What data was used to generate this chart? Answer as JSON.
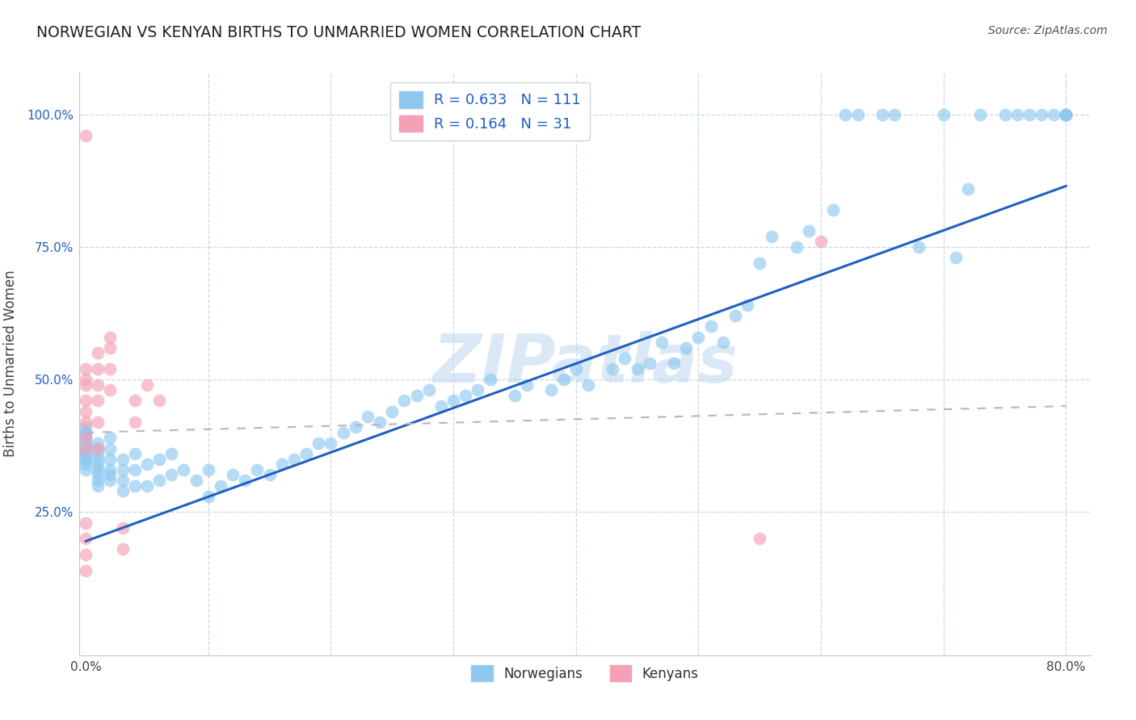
{
  "title": "NORWEGIAN VS KENYAN BIRTHS TO UNMARRIED WOMEN CORRELATION CHART",
  "source": "Source: ZipAtlas.com",
  "ylabel": "Births to Unmarried Women",
  "watermark": "ZIPatlas",
  "xlim": [
    -0.005,
    0.82
  ],
  "ylim": [
    -0.02,
    1.08
  ],
  "xtick_positions": [
    0.0,
    0.1,
    0.2,
    0.3,
    0.4,
    0.5,
    0.6,
    0.7,
    0.8
  ],
  "xtick_labels": [
    "0.0%",
    "",
    "",
    "",
    "",
    "",
    "",
    "",
    "80.0%"
  ],
  "ytick_positions": [
    0.0,
    0.25,
    0.5,
    0.75,
    1.0
  ],
  "ytick_labels": [
    "",
    "25.0%",
    "50.0%",
    "75.0%",
    "100.0%"
  ],
  "norwegian_R": 0.633,
  "norwegian_N": 111,
  "kenyan_R": 0.164,
  "kenyan_N": 31,
  "nor_color": "#8EC8F0",
  "ken_color": "#F5A0B5",
  "nor_line_color": "#2060C0",
  "ken_line_color": "#C0B0C0",
  "background_color": "#FFFFFF",
  "grid_color": "#C8D8E8",
  "title_color": "#202020",
  "legend_text_color": "#2060C0",
  "nor_scatter_x": [
    0.0,
    0.0,
    0.0,
    0.0,
    0.0,
    0.0,
    0.0,
    0.0,
    0.0,
    0.0,
    0.0,
    0.0,
    0.0,
    0.0,
    0.0,
    0.01,
    0.01,
    0.01,
    0.01,
    0.01,
    0.01,
    0.01,
    0.01,
    0.01,
    0.02,
    0.02,
    0.02,
    0.02,
    0.02,
    0.02,
    0.03,
    0.03,
    0.03,
    0.03,
    0.04,
    0.04,
    0.04,
    0.05,
    0.05,
    0.06,
    0.06,
    0.07,
    0.07,
    0.08,
    0.09,
    0.1,
    0.1,
    0.11,
    0.12,
    0.13,
    0.14,
    0.15,
    0.16,
    0.17,
    0.18,
    0.19,
    0.2,
    0.21,
    0.22,
    0.23,
    0.24,
    0.25,
    0.26,
    0.27,
    0.28,
    0.29,
    0.3,
    0.31,
    0.32,
    0.33,
    0.35,
    0.36,
    0.38,
    0.39,
    0.4,
    0.41,
    0.43,
    0.44,
    0.45,
    0.46,
    0.47,
    0.48,
    0.49,
    0.5,
    0.51,
    0.52,
    0.53,
    0.54,
    0.55,
    0.56,
    0.58,
    0.59,
    0.61,
    0.62,
    0.63,
    0.65,
    0.66,
    0.68,
    0.7,
    0.71,
    0.72,
    0.73,
    0.75,
    0.76,
    0.77,
    0.78,
    0.79,
    0.8,
    0.8,
    0.8,
    0.8
  ],
  "nor_scatter_y": [
    0.33,
    0.34,
    0.35,
    0.35,
    0.36,
    0.36,
    0.37,
    0.37,
    0.38,
    0.38,
    0.39,
    0.39,
    0.4,
    0.4,
    0.41,
    0.3,
    0.31,
    0.32,
    0.33,
    0.34,
    0.35,
    0.36,
    0.37,
    0.38,
    0.31,
    0.32,
    0.33,
    0.35,
    0.37,
    0.39,
    0.29,
    0.31,
    0.33,
    0.35,
    0.3,
    0.33,
    0.36,
    0.3,
    0.34,
    0.31,
    0.35,
    0.32,
    0.36,
    0.33,
    0.31,
    0.28,
    0.33,
    0.3,
    0.32,
    0.31,
    0.33,
    0.32,
    0.34,
    0.35,
    0.36,
    0.38,
    0.38,
    0.4,
    0.41,
    0.43,
    0.42,
    0.44,
    0.46,
    0.47,
    0.48,
    0.45,
    0.46,
    0.47,
    0.48,
    0.5,
    0.47,
    0.49,
    0.48,
    0.5,
    0.52,
    0.49,
    0.52,
    0.54,
    0.52,
    0.53,
    0.57,
    0.53,
    0.56,
    0.58,
    0.6,
    0.57,
    0.62,
    0.64,
    0.72,
    0.77,
    0.75,
    0.78,
    0.82,
    1.0,
    1.0,
    1.0,
    1.0,
    0.75,
    1.0,
    0.73,
    0.86,
    1.0,
    1.0,
    1.0,
    1.0,
    1.0,
    1.0,
    1.0,
    1.0,
    1.0,
    1.0
  ],
  "ken_scatter_x": [
    0.0,
    0.0,
    0.0,
    0.0,
    0.0,
    0.0,
    0.0,
    0.0,
    0.0,
    0.0,
    0.0,
    0.0,
    0.0,
    0.01,
    0.01,
    0.01,
    0.01,
    0.01,
    0.01,
    0.02,
    0.02,
    0.02,
    0.02,
    0.03,
    0.03,
    0.04,
    0.04,
    0.05,
    0.06,
    0.55,
    0.6
  ],
  "ken_scatter_y": [
    0.14,
    0.17,
    0.2,
    0.23,
    0.37,
    0.39,
    0.42,
    0.44,
    0.46,
    0.49,
    0.5,
    0.52,
    0.96,
    0.37,
    0.42,
    0.46,
    0.49,
    0.52,
    0.55,
    0.48,
    0.52,
    0.56,
    0.58,
    0.18,
    0.22,
    0.42,
    0.46,
    0.49,
    0.46,
    0.2,
    0.76
  ],
  "nor_line_x0": 0.0,
  "nor_line_x1": 0.8,
  "nor_line_y0": 0.195,
  "nor_line_y1": 0.865,
  "ken_line_x0": 0.0,
  "ken_line_x1": 0.8,
  "ken_line_y0": 0.4,
  "ken_line_y1": 0.45
}
